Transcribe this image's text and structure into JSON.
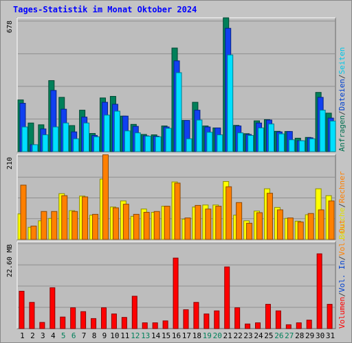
{
  "title": "Tages-Statistik im Monat Oktober 2024",
  "chart_data": [
    {
      "type": "bar",
      "panel": "requests",
      "ymax_label": "678",
      "ylim": [
        0,
        678
      ],
      "categories": [
        "1",
        "2",
        "3",
        "4",
        "5",
        "6",
        "7",
        "8",
        "9",
        "10",
        "11",
        "12",
        "13",
        "14",
        "15",
        "16",
        "17",
        "18",
        "19",
        "20",
        "21",
        "22",
        "23",
        "24",
        "25",
        "26",
        "27",
        "28",
        "29",
        "30",
        "31"
      ],
      "weekend_days": [
        "5",
        "6",
        "12",
        "13",
        "19",
        "20",
        "26",
        "27"
      ],
      "right_label": [
        {
          "text": "Anfragen",
          "color": "#007050"
        },
        {
          "text": "/",
          "color": "#404040"
        },
        {
          "text": "Dateien",
          "color": "#0040d0"
        },
        {
          "text": "/",
          "color": "#404040"
        },
        {
          "text": "Seiten",
          "color": "#00c8e8"
        }
      ],
      "series": [
        {
          "name": "Anfragen",
          "color": "#00805a",
          "values": [
            262,
            145,
            136,
            360,
            275,
            132,
            210,
            92,
            272,
            280,
            180,
            138,
            87,
            85,
            130,
            525,
            158,
            250,
            130,
            120,
            678,
            133,
            91,
            156,
            162,
            103,
            102,
            68,
            72,
            300,
            195
          ]
        },
        {
          "name": "Dateien",
          "color": "#1040f0",
          "values": [
            245,
            35,
            115,
            310,
            215,
            100,
            175,
            82,
            250,
            240,
            180,
            128,
            80,
            78,
            125,
            460,
            158,
            210,
            125,
            120,
            625,
            130,
            87,
            145,
            160,
            100,
            102,
            55,
            70,
            275,
            170
          ]
        },
        {
          "name": "Seiten",
          "color": "#00e0ff",
          "values": [
            125,
            35,
            85,
            125,
            145,
            65,
            145,
            75,
            185,
            205,
            105,
            95,
            78,
            75,
            118,
            400,
            65,
            160,
            98,
            85,
            490,
            95,
            82,
            120,
            140,
            90,
            60,
            55,
            65,
            210,
            155
          ]
        }
      ]
    },
    {
      "type": "bar",
      "panel": "visits",
      "ymax_label": "210",
      "ylim": [
        0,
        210
      ],
      "right_label": [
        {
          "text": "Besuche",
          "color": "#e0e000"
        },
        {
          "text": "/",
          "color": "#404040"
        },
        {
          "text": "Rechner",
          "color": "#ff8000"
        }
      ],
      "series": [
        {
          "name": "Besuche",
          "color": "#ffff00",
          "values": [
            63,
            30,
            46,
            52,
            113,
            71,
            107,
            60,
            149,
            80,
            95,
            57,
            75,
            67,
            82,
            142,
            50,
            80,
            85,
            85,
            143,
            60,
            46,
            70,
            125,
            79,
            52,
            45,
            61,
            125,
            108
          ]
        },
        {
          "name": "Rechner",
          "color": "#ff8000",
          "values": [
            134,
            33,
            69,
            69,
            108,
            69,
            105,
            62,
            209,
            78,
            87,
            62,
            67,
            69,
            82,
            139,
            53,
            84,
            75,
            82,
            130,
            91,
            40,
            66,
            114,
            73,
            53,
            43,
            64,
            73,
            95
          ]
        }
      ]
    },
    {
      "type": "bar",
      "panel": "volume",
      "ymax_label": "22.60 MB",
      "ylim": [
        0,
        22.6
      ],
      "right_label": [
        {
          "text": "Volumen",
          "color": "#ff0000"
        },
        {
          "text": "/",
          "color": "#404040"
        },
        {
          "text": "Vol. In",
          "color": "#0040d0"
        },
        {
          "text": "/",
          "color": "#404040"
        },
        {
          "text": "Vol. Out",
          "color": "#ff8000"
        }
      ],
      "series": [
        {
          "name": "Volumen",
          "color": "#ff0000",
          "values": [
            9.7,
            6.8,
            1.6,
            10.6,
            3.0,
            5.4,
            4.4,
            2.6,
            5.4,
            3.8,
            2.9,
            8.4,
            1.5,
            1.5,
            2.0,
            18.3,
            4.9,
            6.8,
            3.8,
            4.6,
            16.0,
            5.4,
            1.2,
            1.5,
            6.3,
            4.6,
            1.0,
            1.5,
            2.2,
            19.4,
            6.3
          ]
        }
      ]
    }
  ]
}
